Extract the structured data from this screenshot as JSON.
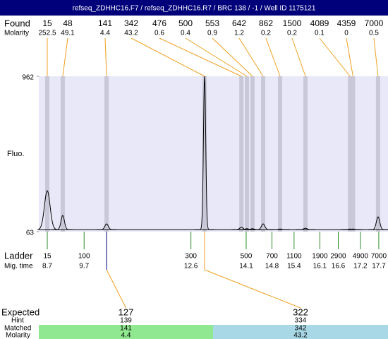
{
  "chart_data": {
    "type": "electropherogram",
    "title": "refseq_ZDHHC16.F7 / refseq_ZDHHC16.R7 / BRC 138 / -1 / Well ID 1175121",
    "found_label": "Found",
    "molarity_label": "Molarity",
    "peaks": {
      "sizes": [
        15,
        48,
        141,
        342,
        476,
        500,
        553,
        642,
        862,
        1500,
        4089,
        4359,
        7000
      ],
      "molarity": [
        252.5,
        49.1,
        4.4,
        43.2,
        0.6,
        0.4,
        0.9,
        1.2,
        0.2,
        0.2,
        0.1,
        0,
        0.5
      ],
      "x": [
        8.7,
        9.12,
        10.31,
        12.97,
        13.97,
        14.12,
        14.27,
        14.56,
        15.02,
        15.71,
        16.92,
        17.0,
        17.68
      ],
      "values": [
        300,
        157,
        108,
        962,
        88,
        80,
        80,
        108,
        78,
        83,
        78,
        78,
        149
      ]
    },
    "ylabel": "Fluo.",
    "ylim": [
      63,
      962
    ],
    "yticks": [
      63,
      962
    ],
    "xlim": [
      8.47,
      17.95
    ],
    "baseline": 75,
    "ladder": {
      "label": "Ladder",
      "time_label": "Mig. time",
      "sizes": [
        15,
        100,
        300,
        500,
        700,
        1100,
        1900,
        2900,
        4900,
        7000
      ],
      "x": [
        8.7,
        9.7,
        12.6,
        14.1,
        14.8,
        15.4,
        16.1,
        16.6,
        17.2,
        17.7
      ]
    },
    "expected": {
      "label": "Expected",
      "hint_label": "Hint",
      "matched_label": "Matched",
      "molarity_label": "Molarity",
      "values": [
        127,
        322
      ],
      "hint": [
        139,
        334
      ],
      "matched": [
        141,
        342
      ],
      "molarity": [
        4.4,
        43.2
      ],
      "colors": [
        "#90e890",
        "#a8d8e6"
      ]
    }
  }
}
